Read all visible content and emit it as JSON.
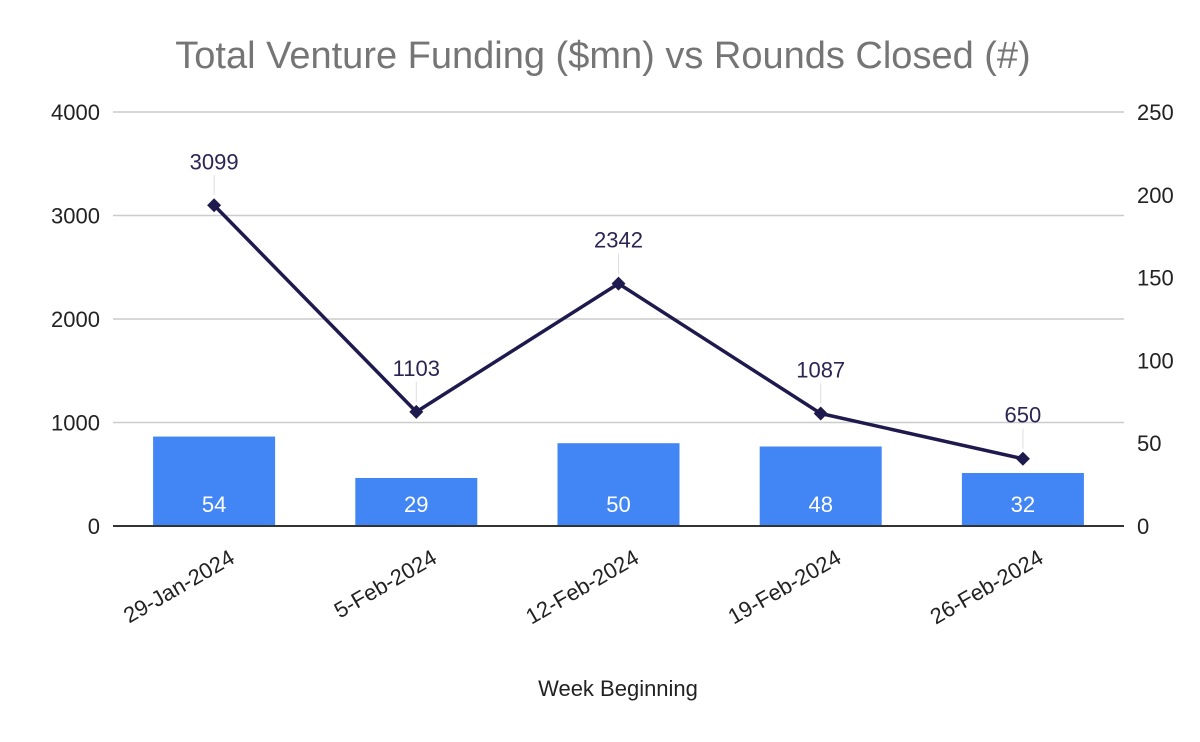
{
  "colors": {
    "bar": "#4285f4",
    "line": "#1f1a4d",
    "grid": "#cccccc",
    "axis": "#333333",
    "title": "#757575"
  },
  "chart_data": {
    "type": "bar",
    "title": "Total Venture Funding ($mn) vs Rounds Closed (#)",
    "xlabel": "Week Beginning",
    "categories": [
      "29-Jan-2024",
      "5-Feb-2024",
      "12-Feb-2024",
      "19-Feb-2024",
      "26-Feb-2024"
    ],
    "y_left": {
      "range": [
        0,
        4000
      ],
      "ticks": [
        0,
        1000,
        2000,
        3000,
        4000
      ]
    },
    "y_right": {
      "range": [
        0,
        250
      ],
      "ticks": [
        0,
        50,
        100,
        150,
        200,
        250
      ]
    },
    "grid": true,
    "legend": "none",
    "series": [
      {
        "type": "bar",
        "axis": "right",
        "values": [
          54,
          29,
          50,
          48,
          32
        ]
      },
      {
        "type": "line",
        "axis": "left",
        "marker": "diamond",
        "values": [
          3099,
          1103,
          2342,
          1087,
          650
        ]
      }
    ]
  }
}
